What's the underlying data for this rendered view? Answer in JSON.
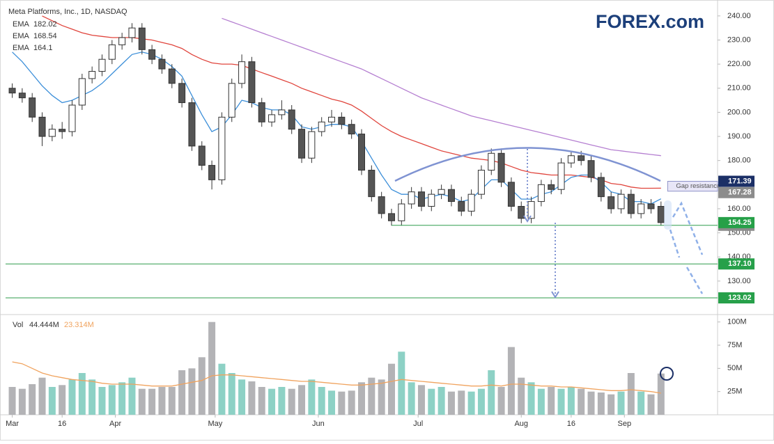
{
  "logo": "FOREX.com",
  "chart_data": [
    {
      "type": "candlestick",
      "title": "Meta Platforms, Inc., 1D, NASDAQ",
      "xlim": [
        -2,
        212
      ],
      "ylim": [
        116.1,
        246.6
      ],
      "yticks": [
        {
          "value": 240,
          "label": "240.00"
        },
        {
          "value": 230,
          "label": "230.00"
        },
        {
          "value": 220,
          "label": "220.00"
        },
        {
          "value": 210,
          "label": "210.00"
        },
        {
          "value": 200,
          "label": "200.00"
        },
        {
          "value": 190,
          "label": "190.00"
        },
        {
          "value": 180,
          "label": "180.00"
        },
        {
          "value": 170,
          "label": "170.00"
        },
        {
          "value": 160,
          "label": "160.00"
        },
        {
          "value": 150,
          "label": "150.00"
        },
        {
          "value": 140,
          "label": "140.00"
        },
        {
          "value": 130,
          "label": "130.00"
        }
      ],
      "up_color": "#ffffff",
      "down_color": "#555555",
      "edge_color": "#333333",
      "last_color": "#26a048",
      "x": [
        0,
        3,
        6,
        9,
        12,
        15,
        18,
        21,
        24,
        27,
        30,
        33,
        36,
        39,
        42,
        45,
        48,
        51,
        54,
        57,
        60,
        63,
        66,
        69,
        72,
        75,
        78,
        81,
        84,
        87,
        90,
        93,
        96,
        99,
        102,
        105,
        108,
        111,
        114,
        117,
        120,
        123,
        126,
        129,
        132,
        135,
        138,
        141,
        144,
        147,
        150,
        153,
        156,
        159,
        162,
        165,
        168,
        171,
        174,
        177,
        180,
        183,
        186,
        189,
        192,
        195
      ],
      "open": [
        210,
        208,
        206,
        198,
        190,
        193,
        192,
        203,
        214,
        217,
        222,
        228,
        231,
        235,
        226,
        222,
        218,
        212,
        204,
        186,
        178,
        172,
        198,
        212,
        221,
        204,
        196,
        199,
        201,
        193,
        181,
        192,
        196,
        198,
        195,
        191,
        176,
        165,
        158,
        155,
        162,
        167,
        161,
        166,
        168,
        163,
        159,
        166,
        176,
        183,
        171,
        161,
        156,
        163,
        170,
        168,
        179,
        182,
        180,
        173,
        165,
        160,
        166,
        158,
        162,
        161
      ],
      "high": [
        212,
        210,
        208,
        200,
        195,
        196,
        205,
        216,
        219,
        224,
        230,
        233,
        237,
        237,
        228,
        224,
        220,
        214,
        206,
        188,
        180,
        200,
        214,
        224,
        223,
        206,
        201,
        205,
        203,
        195,
        194,
        198,
        201,
        200,
        197,
        193,
        178,
        167,
        160,
        164,
        169,
        169,
        168,
        170,
        170,
        165,
        168,
        178,
        185,
        185,
        173,
        163,
        165,
        172,
        172,
        181,
        184,
        184,
        182,
        175,
        167,
        168,
        168,
        164,
        164,
        163
      ],
      "low": [
        206,
        204,
        196,
        186,
        188,
        189,
        190,
        201,
        212,
        215,
        220,
        226,
        229,
        224,
        220,
        216,
        210,
        202,
        184,
        176,
        168,
        170,
        196,
        210,
        202,
        194,
        194,
        197,
        191,
        179,
        179,
        190,
        194,
        193,
        189,
        174,
        163,
        156,
        153,
        153,
        160,
        159,
        159,
        164,
        161,
        157,
        157,
        164,
        174,
        169,
        159,
        154,
        154,
        161,
        166,
        166,
        177,
        178,
        171,
        163,
        158,
        158,
        156,
        156,
        158,
        153
      ],
      "close": [
        208,
        206,
        198,
        190,
        193,
        192,
        203,
        214,
        217,
        222,
        228,
        231,
        235,
        226,
        222,
        218,
        212,
        204,
        186,
        178,
        172,
        198,
        212,
        221,
        204,
        196,
        199,
        201,
        193,
        181,
        192,
        196,
        198,
        195,
        191,
        176,
        165,
        158,
        155,
        162,
        167,
        161,
        166,
        168,
        163,
        159,
        166,
        176,
        183,
        171,
        161,
        156,
        163,
        170,
        168,
        179,
        182,
        180,
        173,
        165,
        160,
        166,
        158,
        162,
        160,
        154.25
      ],
      "series": [
        {
          "name": "EMA",
          "color": "#b57fd1",
          "values": [
            null,
            null,
            null,
            null,
            null,
            null,
            null,
            null,
            null,
            null,
            null,
            null,
            null,
            null,
            null,
            null,
            null,
            null,
            null,
            null,
            null,
            239,
            237.5,
            236,
            234.5,
            233,
            231.5,
            230,
            228.5,
            227,
            225.5,
            224,
            222.5,
            221,
            219.5,
            218,
            216,
            214,
            212,
            210,
            208,
            206,
            204.5,
            203,
            201.5,
            200,
            198.5,
            197.5,
            196.5,
            195.5,
            194.5,
            193.5,
            192.5,
            191.5,
            190.5,
            189.5,
            188.5,
            187.5,
            186.5,
            185.5,
            184.5,
            184,
            183.5,
            183,
            182.5,
            182.02
          ]
        },
        {
          "name": "EMA",
          "color": "#e0443c",
          "values": [
            null,
            null,
            null,
            240,
            238,
            236,
            234.5,
            233,
            232,
            231.5,
            231,
            231,
            231,
            230.5,
            230,
            229,
            228,
            226.5,
            224,
            222,
            220.5,
            220,
            220,
            219.5,
            218,
            216.5,
            215,
            213.5,
            212,
            210,
            208.5,
            207,
            205.5,
            204.5,
            203,
            200.5,
            197.5,
            194.5,
            192,
            190,
            188.5,
            187,
            185.5,
            184,
            183,
            182,
            181,
            180.5,
            180,
            179,
            177.5,
            176,
            175,
            174.5,
            174,
            174,
            174,
            173.5,
            173,
            172,
            170.5,
            170,
            169,
            168.5,
            168.5,
            168.54
          ]
        },
        {
          "name": "EMA",
          "color": "#3c8fd9",
          "values": [
            225,
            221,
            216,
            211,
            207,
            204,
            205,
            207,
            209,
            212,
            216,
            220,
            224,
            225,
            224,
            222,
            219,
            215,
            207,
            199,
            192,
            194,
            199,
            205,
            204,
            202,
            201,
            201,
            199,
            194,
            193,
            194,
            195,
            195,
            194,
            188,
            181,
            174,
            168,
            166,
            166,
            164,
            165,
            166,
            165,
            163,
            164,
            168,
            172,
            172,
            168,
            164,
            164,
            166,
            167,
            170,
            173,
            174,
            174,
            171,
            167,
            166,
            163,
            163,
            162,
            164.1
          ]
        }
      ],
      "levels": [
        {
          "price": 153.13,
          "color": "#2e9b4b",
          "tag_color": "#8c8c8c",
          "x_start": 114
        },
        {
          "price": {
            "value": 137.1,
            "label": "137.10"
          },
          "color": "#2e9b4b",
          "tag_color": "#27a04a",
          "x_start": -2
        },
        {
          "price": 123.02,
          "color": "#2e9b4b",
          "tag_color": "#27a04a",
          "x_start": -2
        }
      ],
      "gap_zone": {
        "top": 171.39,
        "bottom": 167.28,
        "label": "Gap resistance",
        "x_start": 197,
        "top_color": "#1b2f66",
        "bottom_color": "#8c8c8c"
      }
    },
    {
      "type": "bar",
      "xlim": [
        -2,
        212
      ],
      "ylim": [
        0,
        108
      ],
      "yticks": [
        {
          "value": 100,
          "label": "100M"
        },
        {
          "value": 75,
          "label": "75M"
        },
        {
          "value": 50,
          "label": "50M"
        },
        {
          "value": 25,
          "label": "25M"
        }
      ],
      "xticks": [
        {
          "value": 0,
          "label": "Mar"
        },
        {
          "value": 15,
          "label": "16"
        },
        {
          "value": 31,
          "label": "Apr"
        },
        {
          "value": 61,
          "label": "May"
        },
        {
          "value": 92,
          "label": "Jun"
        },
        {
          "value": 122,
          "label": "Jul"
        },
        {
          "value": 153,
          "label": "Aug"
        },
        {
          "value": 168,
          "label": "16"
        },
        {
          "value": 184,
          "label": "Sep"
        }
      ],
      "up_color": "#8dd1c5",
      "down_color": "#b3b3b6",
      "x": [
        0,
        3,
        6,
        9,
        12,
        15,
        18,
        21,
        24,
        27,
        30,
        33,
        36,
        39,
        42,
        45,
        48,
        51,
        54,
        57,
        60,
        63,
        66,
        69,
        72,
        75,
        78,
        81,
        84,
        87,
        90,
        93,
        96,
        99,
        102,
        105,
        108,
        111,
        114,
        117,
        120,
        123,
        126,
        129,
        132,
        135,
        138,
        141,
        144,
        147,
        150,
        153,
        156,
        159,
        162,
        165,
        168,
        171,
        174,
        177,
        180,
        183,
        186,
        189,
        192,
        195
      ],
      "series": [
        {
          "name": "Vol",
          "last_label": "44.444M",
          "values": [
            30,
            28,
            33,
            40,
            30,
            32,
            38,
            45,
            38,
            30,
            32,
            35,
            40,
            28,
            28,
            30,
            30,
            48,
            50,
            62,
            100,
            55,
            45,
            38,
            36,
            30,
            28,
            30,
            28,
            32,
            38,
            30,
            26,
            25,
            26,
            35,
            40,
            38,
            55,
            68,
            35,
            32,
            28,
            30,
            25,
            26,
            25,
            28,
            48,
            30,
            73,
            40,
            35,
            28,
            30,
            28,
            30,
            28,
            25,
            24,
            22,
            25,
            45,
            25,
            22,
            44.444
          ]
        },
        {
          "type": "line",
          "color": "#f0a35e",
          "last_label": "23.314M",
          "values": [
            57,
            55,
            50,
            45,
            42,
            40,
            38,
            37,
            36,
            34,
            33,
            33,
            33,
            32,
            31,
            31,
            31,
            33,
            35,
            37,
            42,
            43,
            43,
            42,
            41,
            40,
            39,
            38,
            37,
            36,
            36,
            35,
            34,
            33,
            32,
            32,
            33,
            34,
            36,
            38,
            37,
            36,
            35,
            34,
            33,
            32,
            31,
            31,
            32,
            31,
            33,
            33,
            32,
            31,
            31,
            30,
            30,
            29,
            28,
            27,
            26,
            26,
            27,
            26,
            25,
            23.314
          ]
        }
      ]
    }
  ]
}
